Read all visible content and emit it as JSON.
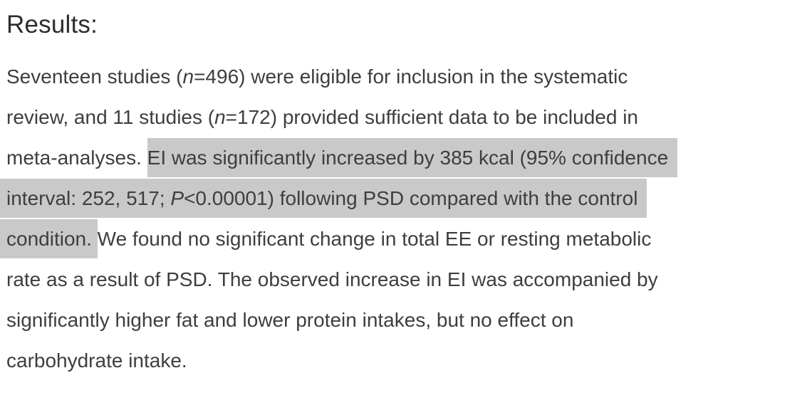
{
  "page": {
    "background_color": "#ffffff",
    "heading_color": "#2d2d2d",
    "text_color": "#3e3e3e",
    "highlight_color": "#c9c9c9"
  },
  "results": {
    "heading": "Results:",
    "full_text": "Seventeen studies (n=496) were eligible for inclusion in the systematic review, and 11 studies (n=172) provided sufficient data to be included in meta-analyses. EI was significantly increased by 385 kcal (95% confidence interval: 252, 517; P<0.00001) following PSD compared with the control condition. We found no significant change in total EE or resting metabolic rate as a result of PSD. The observed increase in EI was accompanied by significantly higher fat and lower protein intakes, but no effect on carbohydrate intake.",
    "highlighted_text": "EI was significantly increased by 385 kcal (95% confidence interval: 252, 517; P<0.00001) following PSD compared with the control condition.",
    "lines": [
      {
        "segments": [
          {
            "style": "normal",
            "text": "Seventeen studies ("
          },
          {
            "style": "italic",
            "text": "n"
          },
          {
            "style": "normal",
            "text": "=496) were eligible for inclusion in the systematic"
          }
        ]
      },
      {
        "segments": [
          {
            "style": "normal",
            "text": "review, and 11 studies ("
          },
          {
            "style": "italic",
            "text": "n"
          },
          {
            "style": "normal",
            "text": "=172) provided sufficient data to be included in"
          }
        ]
      },
      {
        "segments": [
          {
            "style": "normal",
            "text": "meta-analyses. "
          },
          {
            "style": "hl hl-tail",
            "text": "EI was significantly increased by 385 kcal (95% confidence"
          }
        ]
      },
      {
        "segments": [
          {
            "style": "hl hl-lead",
            "text": "interval: 252, 517; "
          },
          {
            "style": "hl italic",
            "text": "P"
          },
          {
            "style": "hl hl-tail",
            "text": "<0.00001) following PSD compared with the control"
          }
        ]
      },
      {
        "segments": [
          {
            "style": "hl hl-lead",
            "text": "condition. "
          },
          {
            "style": "normal",
            "text": "We found no significant change in total EE or resting metabolic"
          }
        ]
      },
      {
        "segments": [
          {
            "style": "normal",
            "text": "rate as a result of PSD. The observed increase in EI was accompanied by"
          }
        ]
      },
      {
        "segments": [
          {
            "style": "normal",
            "text": "significantly higher fat and lower protein intakes, but no effect on"
          }
        ]
      },
      {
        "segments": [
          {
            "style": "normal",
            "text": "carbohydrate intake."
          }
        ]
      }
    ]
  }
}
